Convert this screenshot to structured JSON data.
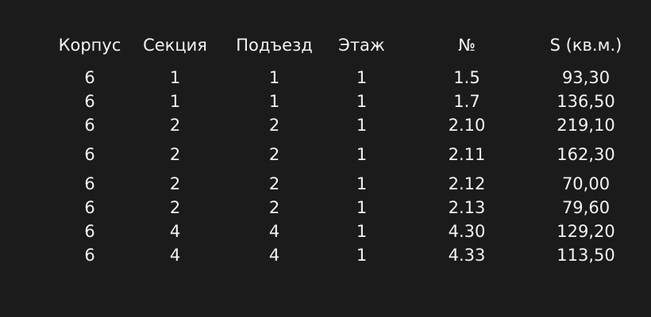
{
  "page": {
    "background_color": "#1b1b1b",
    "text_color": "#f3f3f3"
  },
  "table": {
    "name": "apartments-table",
    "columns": [
      "Корпус",
      "Секция",
      "Подъезд",
      "Этаж",
      "№",
      "S (кв.м.)"
    ],
    "rows": [
      [
        "6",
        "1",
        "1",
        "1",
        "1.5",
        "93,30"
      ],
      [
        "6",
        "1",
        "1",
        "1",
        "1.7",
        "136,50"
      ],
      [
        "6",
        "2",
        "2",
        "1",
        "2.10",
        "219,10"
      ],
      [
        "6",
        "2",
        "2",
        "1",
        "2.11",
        "162,30"
      ],
      [
        "6",
        "2",
        "2",
        "1",
        "2.12",
        "70,00"
      ],
      [
        "6",
        "2",
        "2",
        "1",
        "2.13",
        "79,60"
      ],
      [
        "6",
        "4",
        "4",
        "1",
        "4.30",
        "129,20"
      ],
      [
        "6",
        "4",
        "4",
        "1",
        "4.33",
        "113,50"
      ]
    ]
  }
}
